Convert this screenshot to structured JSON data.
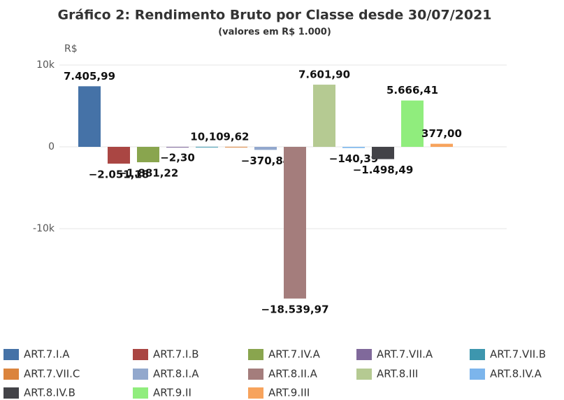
{
  "chart_data": {
    "type": "bar",
    "title": "Gráfico 2: Rendimento Bruto por Classe desde 30/07/2021",
    "subtitle": "(valores em R$ 1.000)",
    "y_axis_label": "R$",
    "categories": [
      "ART.7.I.A",
      "ART.7.I.B",
      "ART.7.IV.A",
      "ART.7.VII.A",
      "ART.7.VII.B",
      "ART.7.VII.C",
      "ART.8.I.A",
      "ART.8.II.A",
      "ART.8.III",
      "ART.8.IV.A",
      "ART.8.IV.B",
      "ART.9.II",
      "ART.9.III"
    ],
    "values": [
      7405.99,
      -2051.18,
      -1881.22,
      -2.3,
      10.1,
      9.62,
      -370.84,
      -18539.97,
      7601.9,
      -140.39,
      -1498.49,
      5666.41,
      377.0
    ],
    "value_labels": [
      "7.405,99",
      "−2.051,18",
      "−1.881,22",
      "−2,30",
      "10,10",
      "9,62",
      "−370,84",
      "−18.539,97",
      "7.601,90",
      "−140,39",
      "−1.498,49",
      "5.666,41",
      "377,00"
    ],
    "colors": [
      "#4572a7",
      "#aa4643",
      "#89a54e",
      "#80699b",
      "#3d96ae",
      "#db843d",
      "#92a8cd",
      "#a47d7c",
      "#b5ca92",
      "#7cb5ec",
      "#434348",
      "#90ed7d",
      "#f7a35c"
    ],
    "ylim": [
      -20000,
      10000
    ],
    "yticks": [
      {
        "value": 10000,
        "label": "10k"
      },
      0,
      {
        "value": -10000,
        "label": "-10k"
      }
    ],
    "grid": true,
    "legend": "bottom"
  }
}
